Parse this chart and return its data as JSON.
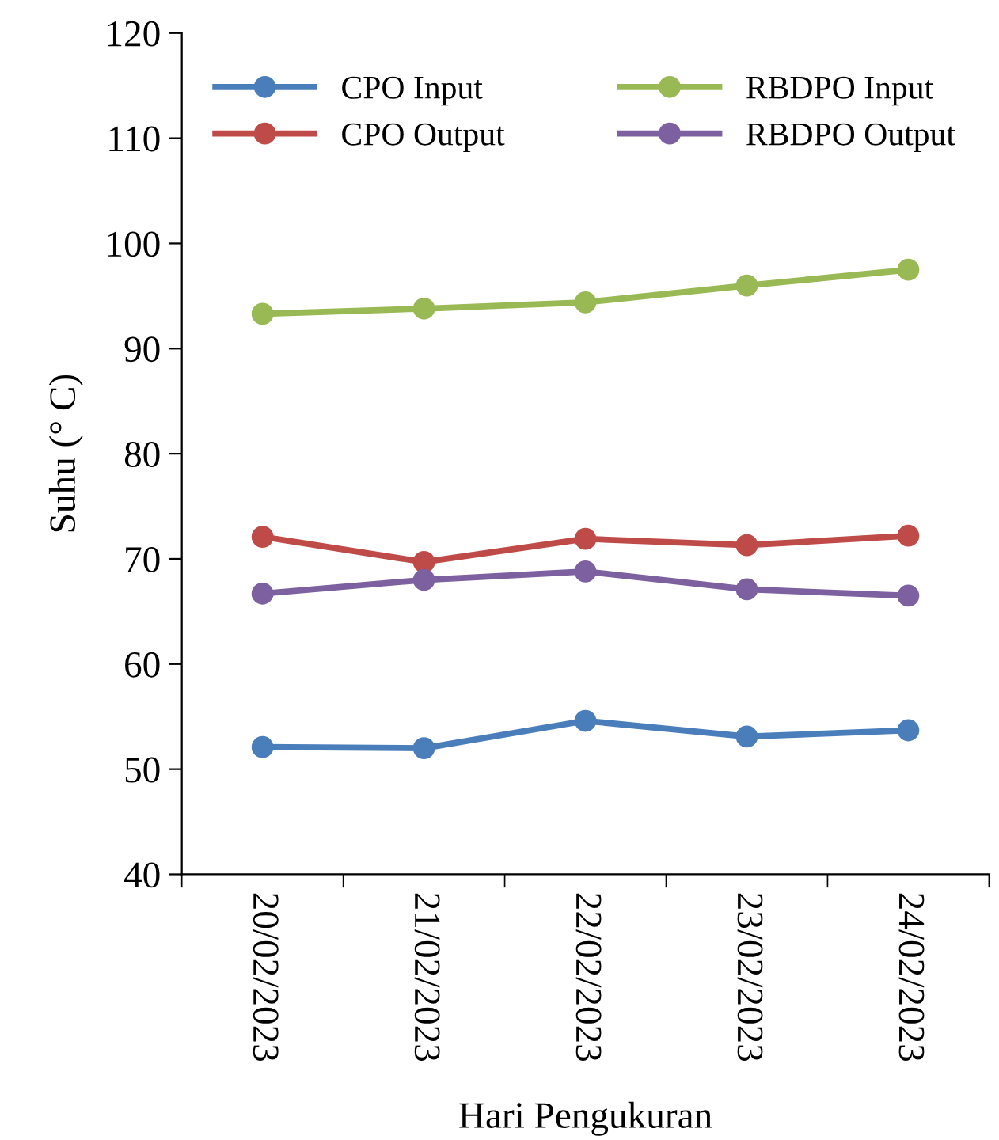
{
  "chart_data": {
    "type": "line",
    "xlabel": "Hari Pengukuran",
    "ylabel": "Suhu (° C)",
    "categories": [
      "20/02/2023",
      "21/02/2023",
      "22/02/2023",
      "23/02/2023",
      "24/02/2023"
    ],
    "series": [
      {
        "name": "CPO Input",
        "color": "#4a7ebb",
        "values": [
          52.1,
          52.0,
          54.6,
          53.1,
          53.7
        ]
      },
      {
        "name": "CPO Output",
        "color": "#be4b48",
        "values": [
          72.1,
          69.7,
          71.9,
          71.3,
          72.2
        ]
      },
      {
        "name": "RBDPO Input",
        "color": "#98b954",
        "values": [
          93.3,
          93.8,
          94.4,
          96.0,
          97.5
        ]
      },
      {
        "name": "RBDPO Output",
        "color": "#7d60a0",
        "values": [
          66.7,
          68.0,
          68.8,
          67.1,
          66.5
        ]
      }
    ],
    "ylim": [
      40,
      120
    ],
    "yticks": [
      40,
      50,
      60,
      70,
      80,
      90,
      100,
      110,
      120
    ],
    "grid": false,
    "legend": "top",
    "marker": "circle",
    "line_style": "solid"
  }
}
